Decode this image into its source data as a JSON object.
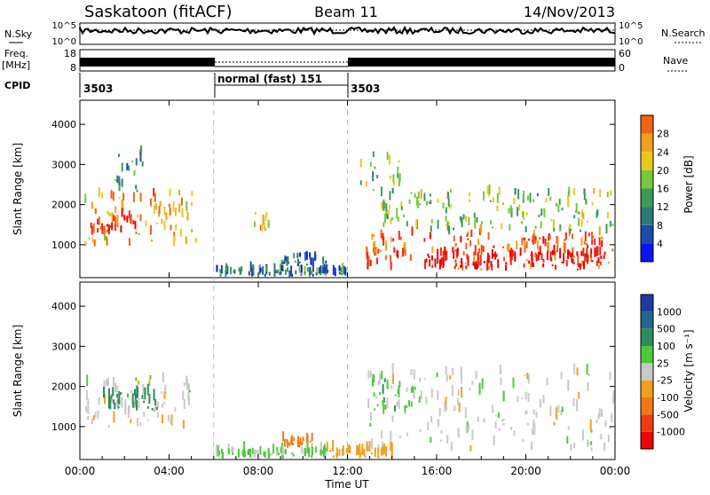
{
  "header": {
    "station": "Saskatoon (fitACF)",
    "beam": "Beam 11",
    "date": "14/Nov/2013"
  },
  "sky_panel": {
    "left_label": "N.Sky",
    "right_label": "N.Search",
    "left_ticks": [
      "10^5",
      "10^0"
    ],
    "right_ticks": [
      "10^5",
      "10^0"
    ]
  },
  "freq_panel": {
    "left_label_1": "Freq.",
    "left_label_2": "[MHz]",
    "right_label": "Nave",
    "left_ticks": [
      "18",
      "8"
    ],
    "right_ticks": [
      "60",
      "0"
    ]
  },
  "cpid": {
    "label": "CPID",
    "segments": [
      {
        "start_hour": 0,
        "end_hour": 6,
        "text": "3503"
      },
      {
        "start_hour": 6,
        "end_hour": 12,
        "text": "normal (fast) 151"
      },
      {
        "start_hour": 12,
        "end_hour": 24,
        "text": "3503"
      }
    ]
  },
  "x_axis": {
    "title": "Time UT",
    "tick_labels": [
      "00:00",
      "04:00",
      "08:00",
      "12:00",
      "16:00",
      "20:00",
      "00:00"
    ],
    "tick_hours": [
      0,
      4,
      8,
      12,
      16,
      20,
      24
    ]
  },
  "power_panel": {
    "ylabel": "Slant Range [km]",
    "y_ticks": [
      1000,
      2000,
      3000,
      4000
    ],
    "colorbar_label": "Power [dB]",
    "colorbar_ticks": [
      "4",
      "8",
      "12",
      "16",
      "20",
      "24",
      "28"
    ],
    "colors": [
      "#0a14f0",
      "#1e4aa8",
      "#2e7a7a",
      "#3c9a5a",
      "#78c83c",
      "#e8c81e",
      "#f0a01e",
      "#f06414",
      "#f02814",
      "#f00000"
    ]
  },
  "velocity_panel": {
    "ylabel": "Slant Range [km]",
    "y_ticks": [
      1000,
      2000,
      3000,
      4000
    ],
    "colorbar_label": "Velocity [m s⁻¹]",
    "colorbar_ticks": [
      "1000",
      "500",
      "100",
      "25",
      "-25",
      "-100",
      "-500",
      "-1000"
    ],
    "colors": [
      "#1e3ca0",
      "#28648c",
      "#2e8c5a",
      "#50c83c",
      "#c8c8c8",
      "#f0a01e",
      "#f07814",
      "#f03c14",
      "#f00000"
    ]
  },
  "chart_data": {
    "type": "heatmap",
    "x_range_hours": [
      0,
      24
    ],
    "y_range_km": [
      180,
      4600
    ],
    "dashed_markers_hours": [
      6,
      12
    ],
    "power_regions": [
      {
        "t0": 0.2,
        "t1": 5.2,
        "r0": 950,
        "r1": 2250,
        "p": 20
      },
      {
        "t0": 0.3,
        "t1": 2.5,
        "r0": 1250,
        "r1": 1700,
        "p": 26
      },
      {
        "t0": 1.5,
        "t1": 2.8,
        "r0": 2300,
        "r1": 3300,
        "p": 10
      },
      {
        "t0": 12.8,
        "t1": 23.9,
        "r0": 350,
        "r1": 1250,
        "p": 24
      },
      {
        "t0": 15.5,
        "t1": 23.5,
        "r0": 380,
        "r1": 750,
        "p": 29
      },
      {
        "t0": 13.5,
        "t1": 23.9,
        "r0": 1250,
        "r1": 2300,
        "p": 14
      },
      {
        "t0": 12.5,
        "t1": 14.5,
        "r0": 1500,
        "r1": 3200,
        "p": 12
      },
      {
        "t0": 7.8,
        "t1": 8.6,
        "r0": 1300,
        "r1": 1800,
        "p": 18
      },
      {
        "t0": 9.0,
        "t1": 11.0,
        "r0": 450,
        "r1": 700,
        "p": 6
      },
      {
        "t0": 6.0,
        "t1": 12.0,
        "r0": 200,
        "r1": 350,
        "p": 8
      }
    ],
    "velocity_regions": [
      {
        "t0": 0.2,
        "t1": 5.2,
        "r0": 950,
        "r1": 2200,
        "v": 0
      },
      {
        "t0": 1.0,
        "t1": 3.5,
        "r0": 1400,
        "r1": 1800,
        "v": 150
      },
      {
        "t0": 12.8,
        "t1": 23.9,
        "r0": 350,
        "r1": 2300,
        "v": 0
      },
      {
        "t0": 13.0,
        "t1": 15.0,
        "r0": 1300,
        "r1": 2200,
        "v": 80
      },
      {
        "t0": 9.0,
        "t1": 10.6,
        "r0": 450,
        "r1": 650,
        "v": -200
      },
      {
        "t0": 11.0,
        "t1": 14.0,
        "r0": 200,
        "r1": 400,
        "v": -60
      },
      {
        "t0": 6.0,
        "t1": 11.0,
        "r0": 200,
        "r1": 350,
        "v": 40
      }
    ]
  }
}
